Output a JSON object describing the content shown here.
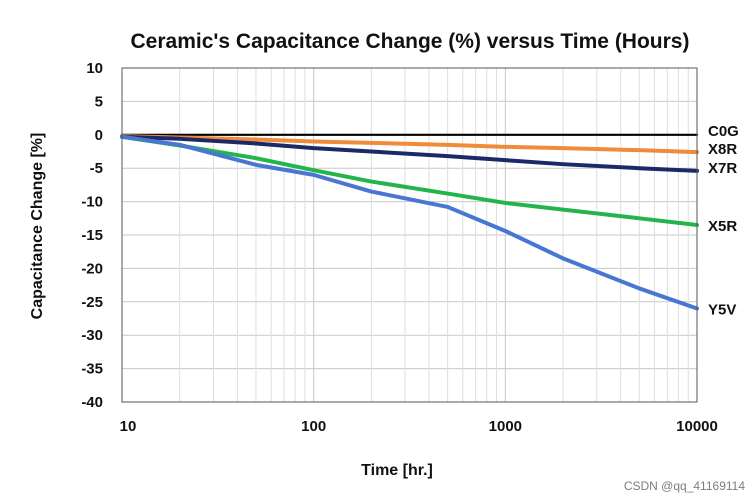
{
  "chart_data": {
    "type": "line",
    "title": "Ceramic's Capacitance Change (%) versus Time (Hours)",
    "xlabel": "Time  [hr.]",
    "ylabel": "Capacitance Change [%]",
    "x_scale": "log",
    "xlim": [
      10,
      10000
    ],
    "ylim": [
      -40,
      10
    ],
    "xticks": [
      10,
      100,
      1000,
      10000
    ],
    "xtick_labels": [
      "10",
      "100",
      "1000",
      "10000"
    ],
    "yticks": [
      10,
      5,
      0,
      -5,
      -10,
      -15,
      -20,
      -25,
      -30,
      -35,
      -40
    ],
    "ytick_labels": [
      "10",
      "5",
      "0",
      "-5",
      "-10",
      "-15",
      "-20",
      "-25",
      "-30",
      "-35",
      "-40"
    ],
    "grid": true,
    "legend": "direct labels at right",
    "series": [
      {
        "name": "C0G",
        "color": "#000000",
        "x": [
          10,
          100,
          1000,
          10000
        ],
        "y": [
          0,
          0,
          0,
          0
        ]
      },
      {
        "name": "X8R",
        "color": "#ef8b3a",
        "x": [
          10,
          20,
          50,
          100,
          200,
          500,
          1000,
          2000,
          5000,
          10000
        ],
        "y": [
          -0.2,
          -0.4,
          -0.7,
          -1.0,
          -1.2,
          -1.5,
          -1.8,
          -2.0,
          -2.3,
          -2.6
        ]
      },
      {
        "name": "X7R",
        "color": "#1b2a67",
        "x": [
          10,
          20,
          50,
          100,
          200,
          500,
          1000,
          2000,
          5000,
          10000
        ],
        "y": [
          -0.3,
          -0.6,
          -1.3,
          -2.0,
          -2.5,
          -3.2,
          -3.8,
          -4.4,
          -5.0,
          -5.4
        ]
      },
      {
        "name": "X5R",
        "color": "#24b44c",
        "x": [
          10,
          20,
          50,
          100,
          200,
          500,
          1000,
          2000,
          5000,
          10000
        ],
        "y": [
          -0.3,
          -1.6,
          -3.5,
          -5.3,
          -7.0,
          -8.8,
          -10.2,
          -11.2,
          -12.5,
          -13.5
        ]
      },
      {
        "name": "Y5V",
        "color": "#4876d2",
        "x": [
          10,
          20,
          50,
          100,
          200,
          500,
          1000,
          2000,
          5000,
          10000
        ],
        "y": [
          -0.3,
          -1.5,
          -4.5,
          -6.0,
          -8.5,
          -10.8,
          -14.4,
          -18.5,
          -23.0,
          -26.0
        ]
      }
    ]
  },
  "watermark": {
    "text": "CSDN @qq_41169114"
  }
}
